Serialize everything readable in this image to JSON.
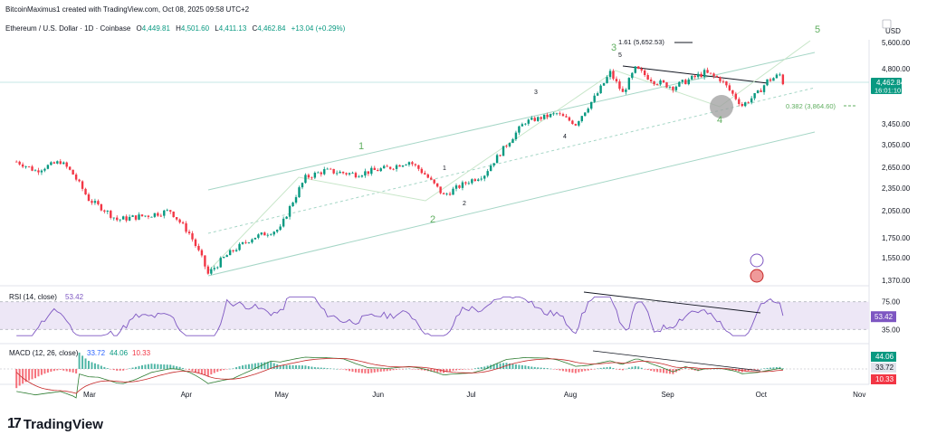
{
  "header": {
    "credit": "BitcoinMaximus1 created with TradingView.com, Oct 08, 2025 09:58 UTC+2",
    "symbol": "Ethereum / U.S. Dollar · 1D · Coinbase",
    "open_label": "O",
    "open": "4,449.81",
    "high_label": "H",
    "high": "4,501.60",
    "low_label": "L",
    "low": "4,411.13",
    "close_label": "C",
    "close": "4,462.84",
    "change": "+13.04 (+0.29%)"
  },
  "axis": {
    "currency": "USD"
  },
  "brand": {
    "name": "TradingView",
    "mark": "17"
  },
  "colors": {
    "up": "#089981",
    "down": "#f23645",
    "wave": "#5fae5f",
    "rsi": "#7e57c2",
    "macd": "#2962ff",
    "signal": "#ff6d00"
  },
  "chart_data": [
    {
      "type": "candlestick",
      "panel": "price",
      "y_ticks": [
        "5,600.00",
        "4,800.00",
        "4,462.84",
        "3,450.00",
        "3,050.00",
        "2,650.00",
        "2,350.00",
        "2,050.00",
        "1,750.00",
        "1,550.00",
        "1,370.00"
      ],
      "x_ticks": [
        "Mar",
        "Apr",
        "May",
        "Jun",
        "Jul",
        "Aug",
        "Sep",
        "Oct",
        "Nov"
      ],
      "last_price": "4,462.84",
      "countdown": "16:01:10",
      "fib_levels": [
        "1.61 (5,652.53)",
        "0.382 (3,864.60)"
      ],
      "wave_labels": [
        "1",
        "2",
        "3",
        "4",
        "5",
        "1",
        "2",
        "3",
        "4",
        "5"
      ],
      "close_path": [
        [
          "2025-02-06",
          2750
        ],
        [
          "2025-02-12",
          2600
        ],
        [
          "2025-02-20",
          2750
        ],
        [
          "2025-02-24",
          2550
        ],
        [
          "2025-03-01",
          2200
        ],
        [
          "2025-03-10",
          1950
        ],
        [
          "2025-03-20",
          2000
        ],
        [
          "2025-03-27",
          2050
        ],
        [
          "2025-04-02",
          1800
        ],
        [
          "2025-04-08",
          1420
        ],
        [
          "2025-04-15",
          1600
        ],
        [
          "2025-04-22",
          1750
        ],
        [
          "2025-05-01",
          1850
        ],
        [
          "2025-05-09",
          2500
        ],
        [
          "2025-05-15",
          2600
        ],
        [
          "2025-05-25",
          2550
        ],
        [
          "2025-06-05",
          2650
        ],
        [
          "2025-06-11",
          2750
        ],
        [
          "2025-06-16",
          2550
        ],
        [
          "2025-06-22",
          2250
        ],
        [
          "2025-06-30",
          2450
        ],
        [
          "2025-07-05",
          2550
        ],
        [
          "2025-07-10",
          2900
        ],
        [
          "2025-07-18",
          3500
        ],
        [
          "2025-07-28",
          3700
        ],
        [
          "2025-08-03",
          3450
        ],
        [
          "2025-08-10",
          4200
        ],
        [
          "2025-08-14",
          4700
        ],
        [
          "2025-08-18",
          4200
        ],
        [
          "2025-08-22",
          4800
        ],
        [
          "2025-08-28",
          4500
        ],
        [
          "2025-09-03",
          4350
        ],
        [
          "2025-09-13",
          4700
        ],
        [
          "2025-09-18",
          4550
        ],
        [
          "2025-09-25",
          3900
        ],
        [
          "2025-09-30",
          4200
        ],
        [
          "2025-10-03",
          4500
        ],
        [
          "2025-10-07",
          4650
        ],
        [
          "2025-10-08",
          4462.84
        ]
      ]
    },
    {
      "type": "line",
      "panel": "rsi",
      "title": "RSI (14, close)",
      "value": "53.42",
      "y_ticks": [
        "75.00",
        "53.42",
        "35.00"
      ],
      "ylim": [
        25,
        85
      ]
    },
    {
      "type": "histogram",
      "panel": "macd",
      "title": "MACD (12, 26, close)",
      "values": [
        "33.72",
        "44.06",
        "10.33"
      ]
    }
  ]
}
